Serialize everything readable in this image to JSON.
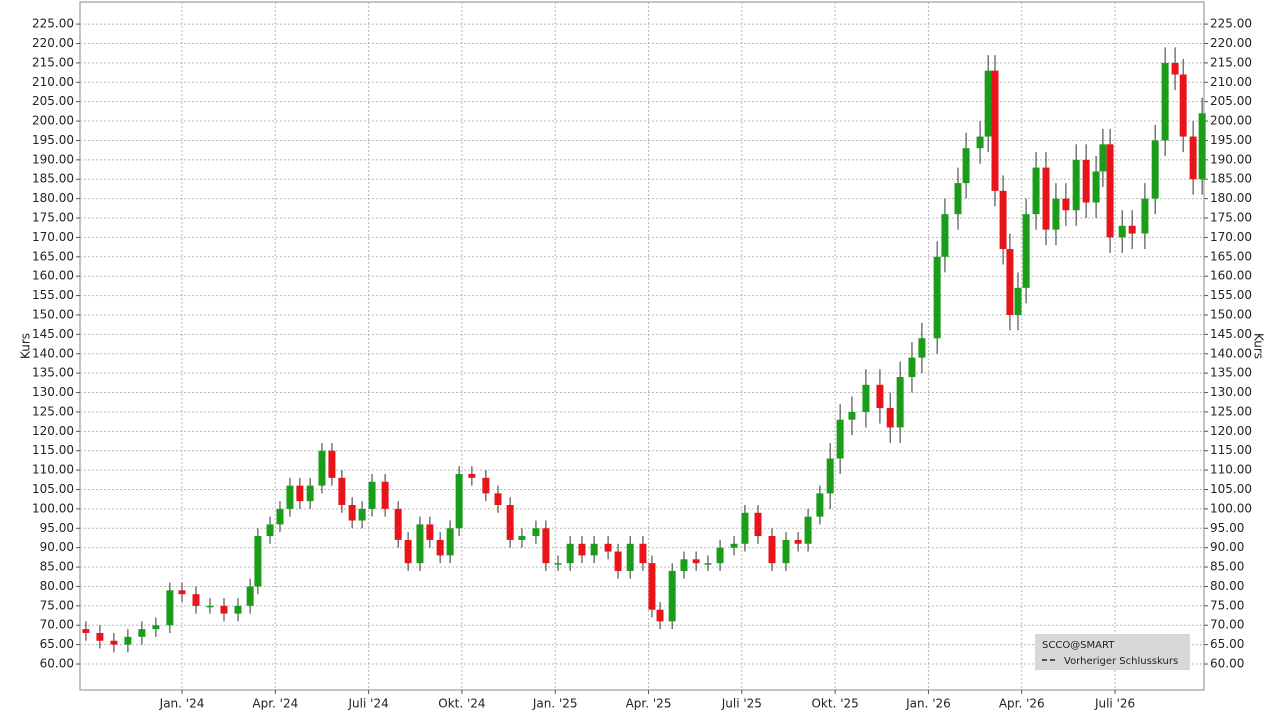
{
  "chart_data": {
    "type": "candlestick",
    "name": "SCCO@SMART",
    "reference_line_label": "Vorheriger Schlusskurs",
    "legend": "lower right",
    "ylabel": "Kurs",
    "grid": true,
    "up_color": "#1a9e1a",
    "down_color": "#e8141a",
    "x": [
      -3.09,
      -2.64,
      -2.19,
      -1.74,
      -1.29,
      -0.84,
      -0.39,
      0,
      0.45,
      0.9,
      1.35,
      1.8,
      2.19,
      2.44,
      2.83,
      3.15,
      3.47,
      3.79,
      4.12,
      4.5,
      4.82,
      5.14,
      5.47,
      5.79,
      6.11,
      6.53,
      6.95,
      7.27,
      7.65,
      7.97,
      8.3,
      8.62,
      8.91,
      9.32,
      9.77,
      10.16,
      10.55,
      10.93,
      11.38,
      11.7,
      12.09,
      12.48,
      12.86,
      13.25,
      13.7,
      14.02,
      14.41,
      14.82,
      15.11,
      15.37,
      15.76,
      16.14,
      16.53,
      16.91,
      17.3,
      17.75,
      18.1,
      18.52,
      18.97,
      19.42,
      19.81,
      20.13,
      20.51,
      20.84,
      21.16,
      21.54,
      21.99,
      22.44,
      22.77,
      23.09,
      23.47,
      23.79,
      24.28,
      24.53,
      24.95,
      25.21,
      25.66,
      25.92,
      26.14,
      26.4,
      26.62,
      26.88,
      27.14,
      27.46,
      27.78,
      28.1,
      28.42,
      28.75,
      29.07,
      29.39,
      29.61,
      29.84,
      30.23,
      30.55,
      30.96,
      31.29,
      31.61,
      31.93,
      32.19,
      32.51,
      32.8
    ],
    "open": [
      69,
      68,
      66,
      65,
      67,
      69,
      70,
      79,
      78,
      75,
      75,
      73,
      75,
      80,
      93,
      96,
      100,
      106,
      102,
      106,
      115,
      108,
      101,
      97,
      100,
      107,
      100,
      92,
      86,
      96,
      92,
      88,
      95,
      109,
      108,
      104,
      101,
      92,
      93,
      95,
      86,
      86,
      91,
      88,
      91,
      89,
      84,
      91,
      86,
      74,
      71,
      84,
      87,
      86,
      86,
      90,
      91,
      99,
      93,
      86,
      92,
      91,
      98,
      104,
      113,
      123,
      125,
      132,
      126,
      121,
      134,
      139,
      144,
      165,
      176,
      184,
      193,
      196,
      213,
      182,
      167,
      150,
      157,
      176,
      188,
      172,
      180,
      177,
      190,
      179,
      187,
      194,
      170,
      173,
      171,
      180,
      195,
      215,
      212,
      196,
      185
    ],
    "high": [
      71,
      70,
      68,
      69,
      71,
      72,
      81,
      81,
      80,
      77,
      77,
      77,
      82,
      95,
      98,
      102,
      108,
      108,
      108,
      117,
      117,
      110,
      103,
      102,
      109,
      109,
      102,
      94,
      98,
      98,
      94,
      97,
      111,
      111,
      110,
      106,
      103,
      95,
      97,
      97,
      88,
      93,
      93,
      93,
      93,
      91,
      93,
      93,
      88,
      76,
      86,
      89,
      89,
      88,
      92,
      93,
      101,
      101,
      95,
      94,
      94,
      100,
      106,
      117,
      127,
      129,
      136,
      136,
      130,
      138,
      143,
      148,
      169,
      180,
      188,
      197,
      200,
      217,
      217,
      186,
      171,
      161,
      180,
      192,
      192,
      184,
      184,
      194,
      194,
      191,
      198,
      198,
      177,
      177,
      184,
      199,
      219,
      219,
      216,
      200,
      206
    ],
    "low": [
      66,
      64,
      63,
      63,
      65,
      67,
      68,
      76,
      73,
      73,
      71,
      71,
      73,
      78,
      91,
      94,
      98,
      100,
      100,
      104,
      106,
      99,
      95,
      95,
      98,
      98,
      90,
      84,
      84,
      90,
      86,
      86,
      93,
      106,
      102,
      99,
      90,
      90,
      91,
      84,
      84,
      84,
      86,
      86,
      87,
      82,
      82,
      84,
      72,
      69,
      69,
      82,
      84,
      84,
      84,
      88,
      89,
      91,
      84,
      84,
      89,
      89,
      96,
      100,
      109,
      119,
      121,
      122,
      117,
      117,
      130,
      135,
      140,
      161,
      172,
      180,
      189,
      192,
      178,
      163,
      146,
      146,
      153,
      172,
      168,
      168,
      173,
      173,
      175,
      175,
      183,
      166,
      166,
      167,
      167,
      176,
      191,
      208,
      192,
      181,
      181
    ],
    "close": [
      68,
      66,
      65,
      67,
      69,
      70,
      79,
      78,
      75,
      75,
      73,
      75,
      80,
      93,
      96,
      100,
      106,
      102,
      106,
      115,
      108,
      101,
      97,
      100,
      107,
      100,
      92,
      86,
      96,
      92,
      88,
      95,
      109,
      108,
      104,
      101,
      92,
      93,
      95,
      86,
      86,
      91,
      88,
      91,
      89,
      84,
      91,
      86,
      74,
      71,
      84,
      87,
      86,
      86,
      90,
      91,
      99,
      93,
      86,
      92,
      91,
      98,
      104,
      113,
      123,
      125,
      132,
      126,
      121,
      134,
      139,
      144,
      165,
      176,
      184,
      193,
      196,
      213,
      182,
      167,
      150,
      157,
      176,
      188,
      172,
      180,
      177,
      190,
      179,
      187,
      194,
      170,
      173,
      171,
      180,
      195,
      215,
      212,
      196,
      185,
      202
    ],
    "xlim": [
      -3.28,
      32.86
    ],
    "xticks": [
      {
        "value": 0,
        "label": "Jan. '24"
      },
      {
        "value": 3,
        "label": "Apr. '24"
      },
      {
        "value": 6,
        "label": "Juli '24"
      },
      {
        "value": 9,
        "label": "Okt. '24"
      },
      {
        "value": 12,
        "label": "Jan. '25"
      },
      {
        "value": 15,
        "label": "Apr. '25"
      },
      {
        "value": 18,
        "label": "Juli '25"
      },
      {
        "value": 21,
        "label": "Okt. '25"
      },
      {
        "value": 24,
        "label": "Jan. '26"
      },
      {
        "value": 27,
        "label": "Apr. '26"
      },
      {
        "value": 30,
        "label": "Juli '26"
      }
    ],
    "ylim": [
      53.3,
      230.7
    ],
    "yticks": [
      {
        "value": 60,
        "label": "60.00"
      },
      {
        "value": 65,
        "label": "65.00"
      },
      {
        "value": 70,
        "label": "70.00"
      },
      {
        "value": 75,
        "label": "75.00"
      },
      {
        "value": 80,
        "label": "80.00"
      },
      {
        "value": 85,
        "label": "85.00"
      },
      {
        "value": 90,
        "label": "90.00"
      },
      {
        "value": 95,
        "label": "95.00"
      },
      {
        "value": 100,
        "label": "100.00"
      },
      {
        "value": 105,
        "label": "105.00"
      },
      {
        "value": 110,
        "label": "110.00"
      },
      {
        "value": 115,
        "label": "115.00"
      },
      {
        "value": 120,
        "label": "120.00"
      },
      {
        "value": 125,
        "label": "125.00"
      },
      {
        "value": 130,
        "label": "130.00"
      },
      {
        "value": 135,
        "label": "135.00"
      },
      {
        "value": 140,
        "label": "140.00"
      },
      {
        "value": 145,
        "label": "145.00"
      },
      {
        "value": 150,
        "label": "150.00"
      },
      {
        "value": 155,
        "label": "155.00"
      },
      {
        "value": 160,
        "label": "160.00"
      },
      {
        "value": 165,
        "label": "165.00"
      },
      {
        "value": 170,
        "label": "170.00"
      },
      {
        "value": 175,
        "label": "175.00"
      },
      {
        "value": 180,
        "label": "180.00"
      },
      {
        "value": 185,
        "label": "185.00"
      },
      {
        "value": 190,
        "label": "190.00"
      },
      {
        "value": 195,
        "label": "195.00"
      },
      {
        "value": 200,
        "label": "200.00"
      },
      {
        "value": 205,
        "label": "205.00"
      },
      {
        "value": 210,
        "label": "210.00"
      },
      {
        "value": 215,
        "label": "215.00"
      },
      {
        "value": 220,
        "label": "220.00"
      },
      {
        "value": 225,
        "label": "225.00"
      }
    ]
  }
}
